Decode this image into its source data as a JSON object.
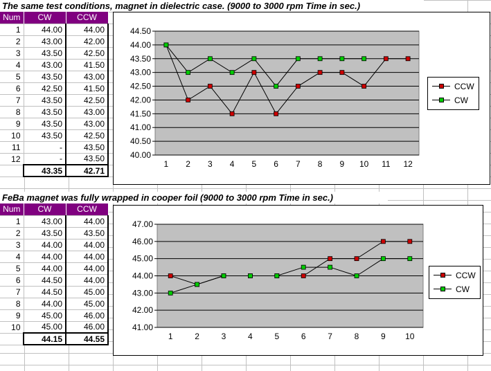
{
  "section1": {
    "title": "The same test conditions,  magnet in dielectric case. (9000 to 3000 rpm Time in sec.)",
    "table": {
      "headers": [
        "Num",
        "CW",
        "CCW"
      ],
      "rows": [
        [
          "1",
          "44.00",
          "44.00"
        ],
        [
          "2",
          "43.00",
          "42.00"
        ],
        [
          "3",
          "43.50",
          "42.50"
        ],
        [
          "4",
          "43.00",
          "41.50"
        ],
        [
          "5",
          "43.50",
          "43.00"
        ],
        [
          "6",
          "42.50",
          "41.50"
        ],
        [
          "7",
          "43.50",
          "42.50"
        ],
        [
          "8",
          "43.50",
          "43.00"
        ],
        [
          "9",
          "43.50",
          "43.00"
        ],
        [
          "10",
          "43.50",
          "42.50"
        ],
        [
          "11",
          "-",
          "43.50"
        ],
        [
          "12",
          "-",
          "43.50"
        ]
      ],
      "totals": [
        "",
        "43.35",
        "42.71"
      ]
    }
  },
  "section2": {
    "title": "FeBa magnet was fully wrapped in cooper foil (9000 to 3000 rpm Time in sec.)",
    "table": {
      "headers": [
        "Num",
        "CW",
        "CCW"
      ],
      "rows": [
        [
          "1",
          "43.00",
          "44.00"
        ],
        [
          "2",
          "43.50",
          "43.50"
        ],
        [
          "3",
          "44.00",
          "44.00"
        ],
        [
          "4",
          "44.00",
          "44.00"
        ],
        [
          "5",
          "44.00",
          "44.00"
        ],
        [
          "6",
          "44.50",
          "44.00"
        ],
        [
          "7",
          "44.50",
          "45.00"
        ],
        [
          "8",
          "44.00",
          "45.00"
        ],
        [
          "9",
          "45.00",
          "46.00"
        ],
        [
          "10",
          "45.00",
          "46.00"
        ]
      ],
      "totals": [
        "",
        "44.15",
        "44.55"
      ]
    }
  },
  "colors": {
    "ccw": "#cc0000",
    "cw": "#00cc00",
    "plot_bg": "#c0c0c0",
    "header_bg": "#800080"
  },
  "chart_data": [
    {
      "type": "line",
      "x": [
        1,
        2,
        3,
        4,
        5,
        6,
        7,
        8,
        9,
        10,
        11,
        12
      ],
      "ylim": [
        40.0,
        44.5
      ],
      "yticks": [
        "40.00",
        "40.50",
        "41.00",
        "41.50",
        "42.00",
        "42.50",
        "43.00",
        "43.50",
        "44.00",
        "44.50"
      ],
      "legend_position": "right",
      "grid": true,
      "series": [
        {
          "name": "CCW",
          "values": [
            44.0,
            42.0,
            42.5,
            41.5,
            43.0,
            41.5,
            42.5,
            43.0,
            43.0,
            42.5,
            43.5,
            43.5
          ]
        },
        {
          "name": "CW",
          "values": [
            44.0,
            43.0,
            43.5,
            43.0,
            43.5,
            42.5,
            43.5,
            43.5,
            43.5,
            43.5,
            null,
            null
          ]
        }
      ]
    },
    {
      "type": "line",
      "x": [
        1,
        2,
        3,
        4,
        5,
        6,
        7,
        8,
        9,
        10
      ],
      "ylim": [
        41.0,
        47.0
      ],
      "yticks": [
        "41.00",
        "42.00",
        "43.00",
        "44.00",
        "45.00",
        "46.00",
        "47.00"
      ],
      "legend_position": "right",
      "grid": true,
      "series": [
        {
          "name": "CCW",
          "values": [
            44.0,
            43.5,
            44.0,
            44.0,
            44.0,
            44.0,
            45.0,
            45.0,
            46.0,
            46.0
          ]
        },
        {
          "name": "CW",
          "values": [
            43.0,
            43.5,
            44.0,
            44.0,
            44.0,
            44.5,
            44.5,
            44.0,
            45.0,
            45.0
          ]
        }
      ]
    }
  ]
}
